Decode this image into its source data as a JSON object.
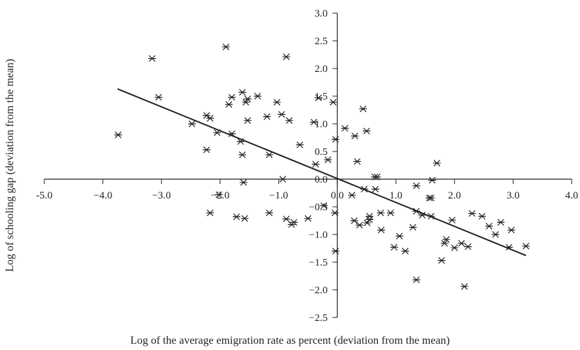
{
  "chart_data": {
    "type": "scatter",
    "title": "",
    "xlabel": "Log of the average emigration rate as percent (deviation from the mean)",
    "ylabel": "Log of schooling gap (deviation from the mean)",
    "xlim": [
      -5.0,
      4.0
    ],
    "ylim": [
      -2.5,
      3.0
    ],
    "x_ticks": [
      -5.0,
      -4.0,
      -3.0,
      -2.0,
      -1.0,
      0.0,
      1.0,
      2.0,
      3.0,
      4.0
    ],
    "y_ticks": [
      -2.5,
      -2.0,
      -1.5,
      -1.0,
      -0.5,
      0.0,
      0.5,
      1.0,
      1.5,
      2.0,
      2.5,
      3.0
    ],
    "x_tick_labels": [
      "-5.0",
      "−4.0",
      "−3.0",
      "−2.0",
      "−1.0",
      "0.0",
      "1.0",
      "2.0",
      "3.0",
      "4.0"
    ],
    "y_tick_labels": [
      "−2.5",
      "−2.0",
      "−1.5",
      "−1.0",
      "−0.5",
      "0.0",
      "0.5",
      "1.0",
      "1.5",
      "2.0",
      "2.5",
      "3.0"
    ],
    "marker": "asterisk",
    "grid": false,
    "trendline": {
      "x": [
        -3.75,
        3.22
      ],
      "y": [
        1.63,
        -1.38
      ]
    },
    "points": [
      [
        -3.74,
        0.8
      ],
      [
        -3.16,
        2.18
      ],
      [
        -3.05,
        1.48
      ],
      [
        -2.48,
        1.0
      ],
      [
        -2.23,
        1.15
      ],
      [
        -2.17,
        1.1
      ],
      [
        -2.23,
        0.53
      ],
      [
        -2.17,
        -0.61
      ],
      [
        -2.05,
        0.84
      ],
      [
        -2.02,
        -0.28
      ],
      [
        -1.9,
        2.39
      ],
      [
        -1.85,
        1.35
      ],
      [
        -1.8,
        1.48
      ],
      [
        -1.8,
        0.82
      ],
      [
        -1.72,
        -0.68
      ],
      [
        -1.65,
        0.68
      ],
      [
        -1.62,
        1.57
      ],
      [
        -1.62,
        0.44
      ],
      [
        -1.6,
        -0.06
      ],
      [
        -1.58,
        -0.71
      ],
      [
        -1.56,
        1.39
      ],
      [
        -1.53,
        1.45
      ],
      [
        -1.53,
        1.06
      ],
      [
        -1.36,
        1.5
      ],
      [
        -1.2,
        1.13
      ],
      [
        -1.16,
        0.44
      ],
      [
        -1.16,
        -0.61
      ],
      [
        -1.03,
        1.39
      ],
      [
        -0.95,
        1.17
      ],
      [
        -0.93,
        0.0
      ],
      [
        -0.87,
        2.21
      ],
      [
        -0.87,
        -0.72
      ],
      [
        -0.82,
        1.06
      ],
      [
        -0.78,
        -0.82
      ],
      [
        -0.74,
        -0.78
      ],
      [
        -0.64,
        0.62
      ],
      [
        -0.5,
        -0.71
      ],
      [
        -0.4,
        1.03
      ],
      [
        -0.37,
        0.27
      ],
      [
        -0.32,
        1.47
      ],
      [
        -0.23,
        -0.48
      ],
      [
        -0.16,
        0.35
      ],
      [
        -0.07,
        1.39
      ],
      [
        -0.03,
        0.72
      ],
      [
        -0.04,
        -0.61
      ],
      [
        -0.03,
        -1.3
      ],
      [
        0.13,
        0.92
      ],
      [
        0.25,
        -0.29
      ],
      [
        0.29,
        -0.75
      ],
      [
        0.3,
        0.78
      ],
      [
        0.34,
        0.32
      ],
      [
        0.38,
        -0.83
      ],
      [
        0.44,
        1.27
      ],
      [
        0.46,
        -0.18
      ],
      [
        0.5,
        0.87
      ],
      [
        0.51,
        -0.79
      ],
      [
        0.55,
        -0.73
      ],
      [
        0.55,
        -0.67
      ],
      [
        0.64,
        0.04
      ],
      [
        0.65,
        -0.18
      ],
      [
        0.68,
        0.04
      ],
      [
        0.74,
        -0.61
      ],
      [
        0.75,
        -0.92
      ],
      [
        0.91,
        -0.61
      ],
      [
        0.97,
        -1.23
      ],
      [
        1.06,
        -1.03
      ],
      [
        1.16,
        -1.3
      ],
      [
        1.29,
        -0.87
      ],
      [
        1.35,
        -0.12
      ],
      [
        1.35,
        -0.58
      ],
      [
        1.35,
        -1.82
      ],
      [
        1.45,
        -0.65
      ],
      [
        1.57,
        -0.34
      ],
      [
        1.6,
        -0.34
      ],
      [
        1.6,
        -0.67
      ],
      [
        1.62,
        -0.02
      ],
      [
        1.7,
        0.29
      ],
      [
        1.78,
        -1.47
      ],
      [
        1.83,
        -1.16
      ],
      [
        1.86,
        -1.09
      ],
      [
        1.96,
        -0.74
      ],
      [
        2.0,
        -1.24
      ],
      [
        2.12,
        -1.16
      ],
      [
        2.17,
        -1.94
      ],
      [
        2.23,
        -1.22
      ],
      [
        2.3,
        -0.62
      ],
      [
        2.47,
        -0.67
      ],
      [
        2.59,
        -0.85
      ],
      [
        2.7,
        -1.0
      ],
      [
        2.79,
        -0.78
      ],
      [
        2.93,
        -1.23
      ],
      [
        2.97,
        -0.92
      ],
      [
        3.22,
        -1.21
      ]
    ]
  }
}
